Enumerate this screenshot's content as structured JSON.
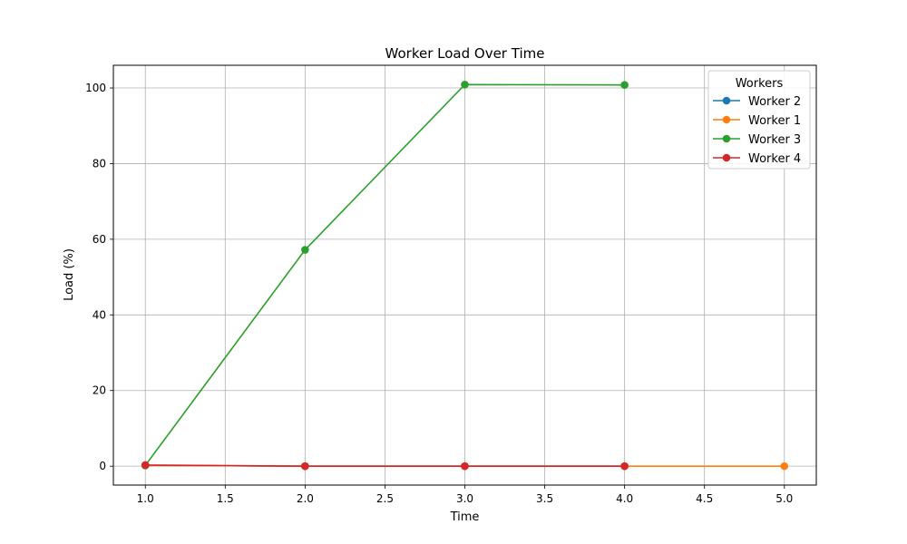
{
  "chart_data": {
    "type": "line",
    "title": "Worker Load Over Time",
    "xlabel": "Time",
    "ylabel": "Load (%)",
    "xlim": [
      0.8,
      5.2
    ],
    "ylim": [
      -5,
      106
    ],
    "xticks": [
      1.0,
      1.5,
      2.0,
      2.5,
      3.0,
      3.5,
      4.0,
      4.5,
      5.0
    ],
    "xtick_labels": [
      "1.0",
      "1.5",
      "2.0",
      "2.5",
      "3.0",
      "3.5",
      "4.0",
      "4.5",
      "5.0"
    ],
    "yticks": [
      0,
      20,
      40,
      60,
      80,
      100
    ],
    "ytick_labels": [
      "0",
      "20",
      "40",
      "60",
      "80",
      "100"
    ],
    "grid": true,
    "legend": {
      "title": "Workers",
      "placement": "upper-right"
    },
    "series": [
      {
        "name": "Worker 2",
        "color": "#1f77b4",
        "x": [
          1.0,
          2.0,
          3.0,
          4.0
        ],
        "y": [
          0.2,
          0.0,
          0.0,
          0.0
        ]
      },
      {
        "name": "Worker 1",
        "color": "#ff7f0e",
        "x": [
          1.0,
          2.0,
          3.0,
          4.0,
          5.0
        ],
        "y": [
          0.2,
          0.0,
          0.0,
          0.0,
          0.0
        ]
      },
      {
        "name": "Worker 3",
        "color": "#2ca02c",
        "x": [
          1.0,
          2.0,
          3.0,
          4.0
        ],
        "y": [
          0.2,
          57.2,
          100.9,
          100.8
        ]
      },
      {
        "name": "Worker 4",
        "color": "#d62728",
        "x": [
          1.0,
          2.0,
          3.0,
          4.0
        ],
        "y": [
          0.3,
          0.0,
          0.0,
          0.0
        ]
      }
    ]
  }
}
